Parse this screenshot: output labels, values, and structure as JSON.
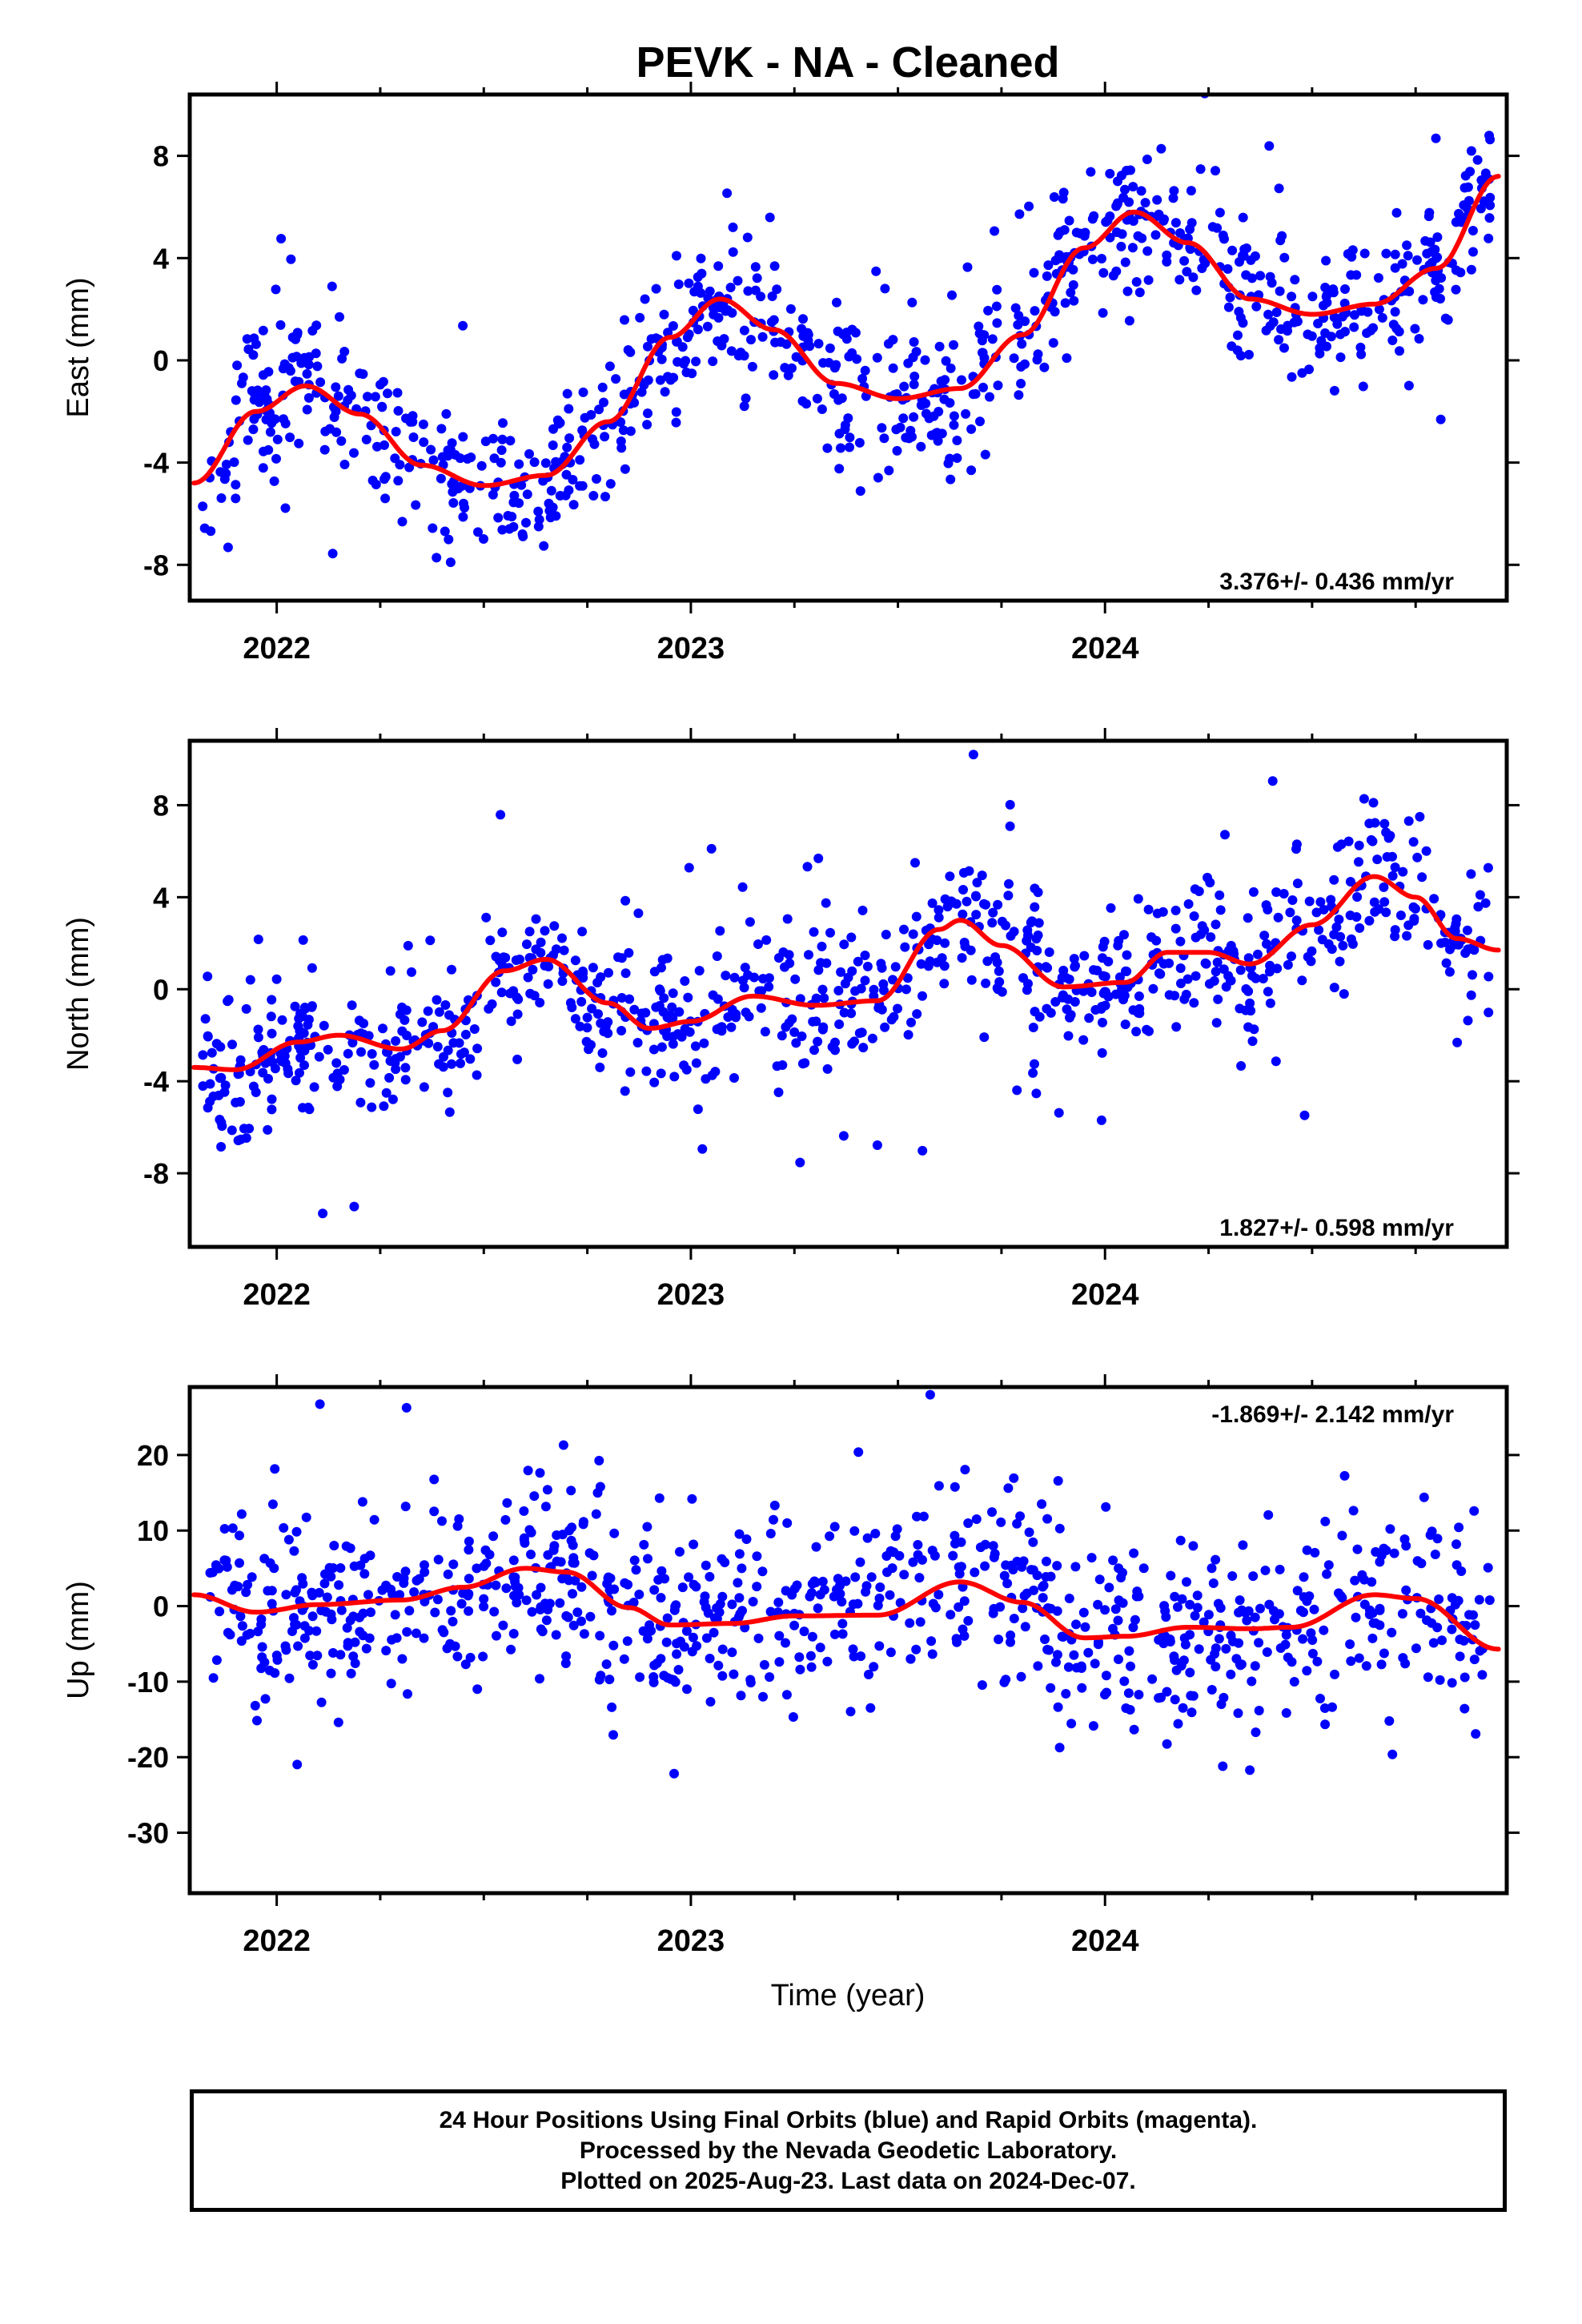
{
  "title": "PEVK  - NA - Cleaned",
  "xlabel": "Time (year)",
  "footer": {
    "line1": "24 Hour Positions Using Final Orbits (blue) and Rapid Orbits (magenta).",
    "line2": "Processed by the Nevada Geodetic Laboratory.",
    "line3": "Plotted on 2025-Aug-23. Last data on 2024-Dec-07."
  },
  "colors": {
    "points": "#0000ff",
    "fit": "#ff0000",
    "axes": "#000000"
  },
  "chart_data": [
    {
      "type": "scatter",
      "panel": "east",
      "ylabel": "East (mm)",
      "rate_label": "3.376+/- 0.436 mm/yr",
      "xlim": [
        2021.79,
        2024.97
      ],
      "ylim": [
        -9.4,
        10.4
      ],
      "x_ticks": [
        2022,
        2023,
        2024
      ],
      "y_ticks": [
        -8,
        -4,
        0,
        4,
        8
      ],
      "grid": false,
      "series": [
        {
          "role": "daily positions",
          "generator": {
            "seed": 11,
            "n": 900,
            "scatter": 1.45,
            "outlier": 3.5
          }
        },
        {
          "role": "fit",
          "x": [
            2021.8,
            2021.95,
            2022.07,
            2022.2,
            2022.35,
            2022.5,
            2022.65,
            2022.8,
            2022.95,
            2023.07,
            2023.2,
            2023.35,
            2023.5,
            2023.65,
            2023.8,
            2023.95,
            2024.07,
            2024.2,
            2024.35,
            2024.5,
            2024.65,
            2024.8,
            2024.95
          ],
          "y": [
            -4.8,
            -2.0,
            -1.0,
            -2.1,
            -4.1,
            -4.9,
            -4.5,
            -2.4,
            0.9,
            2.4,
            1.2,
            -0.9,
            -1.5,
            -1.1,
            1.0,
            4.4,
            5.8,
            4.6,
            2.4,
            1.8,
            2.2,
            3.6,
            7.2
          ]
        }
      ]
    },
    {
      "type": "scatter",
      "panel": "north",
      "ylabel": "North (mm)",
      "rate_label": "1.827+/- 0.598 mm/yr",
      "xlim": [
        2021.79,
        2024.97
      ],
      "ylim": [
        -11.2,
        10.8
      ],
      "x_ticks": [
        2022,
        2023,
        2024
      ],
      "y_ticks": [
        -8,
        -4,
        0,
        4,
        8
      ],
      "grid": false,
      "series": [
        {
          "role": "daily positions",
          "generator": {
            "seed": 23,
            "n": 900,
            "scatter": 1.55,
            "outlier": 5.0
          }
        },
        {
          "role": "fit",
          "x": [
            2021.8,
            2021.9,
            2022.05,
            2022.15,
            2022.3,
            2022.4,
            2022.55,
            2022.65,
            2022.8,
            2022.9,
            2023.0,
            2023.15,
            2023.3,
            2023.45,
            2023.6,
            2023.65,
            2023.75,
            2023.9,
            2024.05,
            2024.15,
            2024.25,
            2024.35,
            2024.5,
            2024.65,
            2024.75,
            2024.85,
            2024.95
          ],
          "y": [
            -3.4,
            -3.5,
            -2.3,
            -2.0,
            -2.6,
            -1.8,
            0.8,
            1.3,
            -0.6,
            -1.7,
            -1.4,
            -0.3,
            -0.7,
            -0.5,
            2.6,
            3.0,
            1.9,
            0.1,
            0.3,
            1.6,
            1.6,
            1.1,
            2.8,
            4.9,
            4.0,
            2.2,
            1.7
          ]
        }
      ]
    },
    {
      "type": "scatter",
      "panel": "up",
      "ylabel": "Up (mm)",
      "rate_label": "-1.869+/- 2.142 mm/yr",
      "xlim": [
        2021.79,
        2024.97
      ],
      "ylim": [
        -38,
        29
      ],
      "x_ticks": [
        2022,
        2023,
        2024
      ],
      "y_ticks": [
        -30,
        -20,
        -10,
        0,
        10,
        20
      ],
      "grid": false,
      "series": [
        {
          "role": "daily positions",
          "generator": {
            "seed": 37,
            "n": 900,
            "scatter": 6.2,
            "outlier": 16.0
          }
        },
        {
          "role": "fit",
          "x": [
            2021.8,
            2021.95,
            2022.1,
            2022.3,
            2022.45,
            2022.6,
            2022.7,
            2022.85,
            2022.95,
            2023.1,
            2023.25,
            2023.45,
            2023.65,
            2023.8,
            2023.95,
            2024.05,
            2024.2,
            2024.35,
            2024.45,
            2024.65,
            2024.75,
            2024.95
          ],
          "y": [
            1.5,
            -0.8,
            0.2,
            0.8,
            2.5,
            5.0,
            4.5,
            -0.2,
            -2.5,
            -2.3,
            -1.3,
            -1.2,
            3.2,
            0.5,
            -4.2,
            -4.0,
            -2.8,
            -3.0,
            -2.8,
            1.5,
            1.0,
            -5.7
          ]
        }
      ]
    }
  ]
}
